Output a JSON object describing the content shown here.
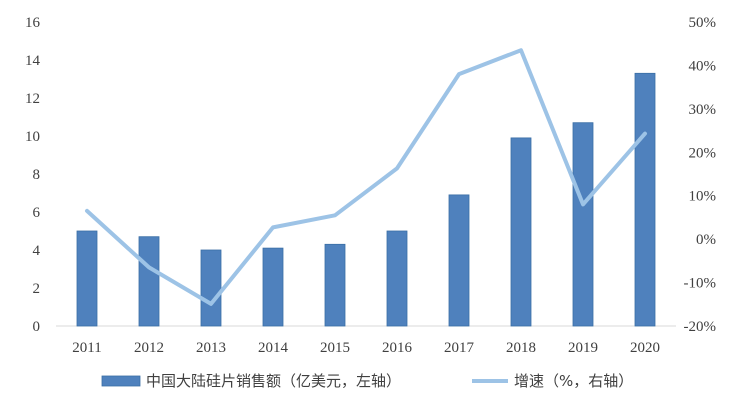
{
  "chart_data": {
    "type": "bar",
    "categories": [
      "2011",
      "2012",
      "2013",
      "2014",
      "2015",
      "2016",
      "2017",
      "2018",
      "2019",
      "2020"
    ],
    "series": [
      {
        "name": "中国大陆硅片销售额（亿美元，左轴）",
        "type": "bar",
        "axis": "left",
        "color": "#4f81bd",
        "values": [
          5.0,
          4.7,
          4.0,
          4.1,
          4.3,
          5.0,
          6.9,
          9.9,
          10.7,
          13.3
        ]
      },
      {
        "name": "增速（%，右轴）",
        "type": "line",
        "axis": "right",
        "color": "#9dc3e6",
        "values": [
          6.5,
          -6.5,
          -14.9,
          2.7,
          5.5,
          16.3,
          38.0,
          43.5,
          8.0,
          24.3
        ]
      }
    ],
    "left_axis": {
      "ylim": [
        0,
        16
      ],
      "ticks": [
        0,
        2,
        4,
        6,
        8,
        10,
        12,
        14,
        16
      ],
      "tick_labels": [
        "0",
        "2",
        "4",
        "6",
        "8",
        "10",
        "12",
        "14",
        "16"
      ]
    },
    "right_axis": {
      "ylim": [
        -20,
        50
      ],
      "ticks": [
        -20,
        -10,
        0,
        10,
        20,
        30,
        40,
        50
      ],
      "tick_labels": [
        "-20%",
        "-10%",
        "0%",
        "10%",
        "20%",
        "30%",
        "40%",
        "50%"
      ]
    },
    "grid": false,
    "legend": "bottom"
  }
}
